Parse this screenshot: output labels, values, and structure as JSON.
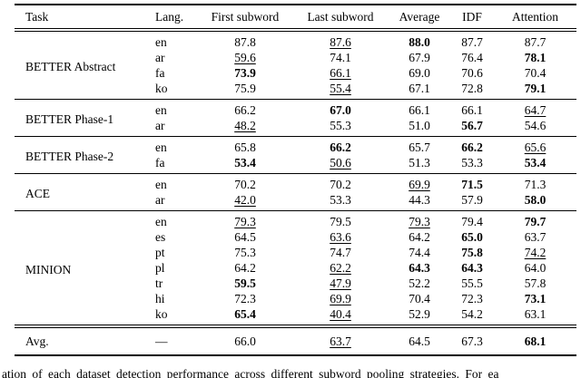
{
  "page": {
    "background": "#ffffff",
    "text_color": "#000000"
  },
  "table": {
    "headers": [
      "Task",
      "Lang.",
      "First subword",
      "Last subword",
      "Average",
      "IDF",
      "Attention"
    ],
    "groups": [
      {
        "task": "BETTER Abstract",
        "rows": [
          {
            "lang": "en",
            "values": [
              {
                "v": "87.8",
                "style": "plain"
              },
              {
                "v": "87.6",
                "style": "underline"
              },
              {
                "v": "88.0",
                "style": "bold"
              },
              {
                "v": "87.7",
                "style": "plain"
              },
              {
                "v": "87.7",
                "style": "plain"
              }
            ]
          },
          {
            "lang": "ar",
            "values": [
              {
                "v": "59.6",
                "style": "underline"
              },
              {
                "v": "74.1",
                "style": "plain"
              },
              {
                "v": "67.9",
                "style": "plain"
              },
              {
                "v": "76.4",
                "style": "plain"
              },
              {
                "v": "78.1",
                "style": "bold"
              }
            ]
          },
          {
            "lang": "fa",
            "values": [
              {
                "v": "73.9",
                "style": "bold"
              },
              {
                "v": "66.1",
                "style": "underline"
              },
              {
                "v": "69.0",
                "style": "plain"
              },
              {
                "v": "70.6",
                "style": "plain"
              },
              {
                "v": "70.4",
                "style": "plain"
              }
            ]
          },
          {
            "lang": "ko",
            "values": [
              {
                "v": "75.9",
                "style": "plain"
              },
              {
                "v": "55.4",
                "style": "underline"
              },
              {
                "v": "67.1",
                "style": "plain"
              },
              {
                "v": "72.8",
                "style": "plain"
              },
              {
                "v": "79.1",
                "style": "bold"
              }
            ]
          }
        ]
      },
      {
        "task": "BETTER Phase-1",
        "rows": [
          {
            "lang": "en",
            "values": [
              {
                "v": "66.2",
                "style": "plain"
              },
              {
                "v": "67.0",
                "style": "bold"
              },
              {
                "v": "66.1",
                "style": "plain"
              },
              {
                "v": "66.1",
                "style": "plain"
              },
              {
                "v": "64.7",
                "style": "underline"
              }
            ]
          },
          {
            "lang": "ar",
            "values": [
              {
                "v": "48.2",
                "style": "underline"
              },
              {
                "v": "55.3",
                "style": "plain"
              },
              {
                "v": "51.0",
                "style": "plain"
              },
              {
                "v": "56.7",
                "style": "bold"
              },
              {
                "v": "54.6",
                "style": "plain"
              }
            ]
          }
        ]
      },
      {
        "task": "BETTER Phase-2",
        "rows": [
          {
            "lang": "en",
            "values": [
              {
                "v": "65.8",
                "style": "plain"
              },
              {
                "v": "66.2",
                "style": "bold"
              },
              {
                "v": "65.7",
                "style": "plain"
              },
              {
                "v": "66.2",
                "style": "bold"
              },
              {
                "v": "65.6",
                "style": "underline"
              }
            ]
          },
          {
            "lang": "fa",
            "values": [
              {
                "v": "53.4",
                "style": "bold"
              },
              {
                "v": "50.6",
                "style": "underline"
              },
              {
                "v": "51.3",
                "style": "plain"
              },
              {
                "v": "53.3",
                "style": "plain"
              },
              {
                "v": "53.4",
                "style": "bold"
              }
            ]
          }
        ]
      },
      {
        "task": "ACE",
        "rows": [
          {
            "lang": "en",
            "values": [
              {
                "v": "70.2",
                "style": "plain"
              },
              {
                "v": "70.2",
                "style": "plain"
              },
              {
                "v": "69.9",
                "style": "underline"
              },
              {
                "v": "71.5",
                "style": "bold"
              },
              {
                "v": "71.3",
                "style": "plain"
              }
            ]
          },
          {
            "lang": "ar",
            "values": [
              {
                "v": "42.0",
                "style": "underline"
              },
              {
                "v": "53.3",
                "style": "plain"
              },
              {
                "v": "44.3",
                "style": "plain"
              },
              {
                "v": "57.9",
                "style": "plain"
              },
              {
                "v": "58.0",
                "style": "bold"
              }
            ]
          }
        ]
      },
      {
        "task": "MINION",
        "rows": [
          {
            "lang": "en",
            "values": [
              {
                "v": "79.3",
                "style": "underline"
              },
              {
                "v": "79.5",
                "style": "plain"
              },
              {
                "v": "79.3",
                "style": "underline"
              },
              {
                "v": "79.4",
                "style": "plain"
              },
              {
                "v": "79.7",
                "style": "bold"
              }
            ]
          },
          {
            "lang": "es",
            "values": [
              {
                "v": "64.5",
                "style": "plain"
              },
              {
                "v": "63.6",
                "style": "underline"
              },
              {
                "v": "64.2",
                "style": "plain"
              },
              {
                "v": "65.0",
                "style": "bold"
              },
              {
                "v": "63.7",
                "style": "plain"
              }
            ]
          },
          {
            "lang": "pt",
            "values": [
              {
                "v": "75.3",
                "style": "plain"
              },
              {
                "v": "74.7",
                "style": "plain"
              },
              {
                "v": "74.4",
                "style": "plain"
              },
              {
                "v": "75.8",
                "style": "bold"
              },
              {
                "v": "74.2",
                "style": "underline"
              }
            ]
          },
          {
            "lang": "pl",
            "values": [
              {
                "v": "64.2",
                "style": "plain"
              },
              {
                "v": "62.2",
                "style": "underline"
              },
              {
                "v": "64.3",
                "style": "bold"
              },
              {
                "v": "64.3",
                "style": "bold"
              },
              {
                "v": "64.0",
                "style": "plain"
              }
            ]
          },
          {
            "lang": "tr",
            "values": [
              {
                "v": "59.5",
                "style": "bold"
              },
              {
                "v": "47.9",
                "style": "underline"
              },
              {
                "v": "52.2",
                "style": "plain"
              },
              {
                "v": "55.5",
                "style": "plain"
              },
              {
                "v": "57.8",
                "style": "plain"
              }
            ]
          },
          {
            "lang": "hi",
            "values": [
              {
                "v": "72.3",
                "style": "plain"
              },
              {
                "v": "69.9",
                "style": "underline"
              },
              {
                "v": "70.4",
                "style": "plain"
              },
              {
                "v": "72.3",
                "style": "plain"
              },
              {
                "v": "73.1",
                "style": "bold"
              }
            ]
          },
          {
            "lang": "ko",
            "values": [
              {
                "v": "65.4",
                "style": "bold"
              },
              {
                "v": "40.4",
                "style": "underline"
              },
              {
                "v": "52.9",
                "style": "plain"
              },
              {
                "v": "54.2",
                "style": "plain"
              },
              {
                "v": "63.1",
                "style": "plain"
              }
            ]
          }
        ]
      }
    ],
    "avg_row": {
      "task": "Avg.",
      "lang": "—",
      "values": [
        {
          "v": "66.0",
          "style": "plain"
        },
        {
          "v": "63.7",
          "style": "underline"
        },
        {
          "v": "64.5",
          "style": "plain"
        },
        {
          "v": "67.3",
          "style": "plain"
        },
        {
          "v": "68.1",
          "style": "bold"
        }
      ]
    }
  },
  "caption_fragment": "ation of each dataset detection performance across different subword pooling strategies. For ea"
}
